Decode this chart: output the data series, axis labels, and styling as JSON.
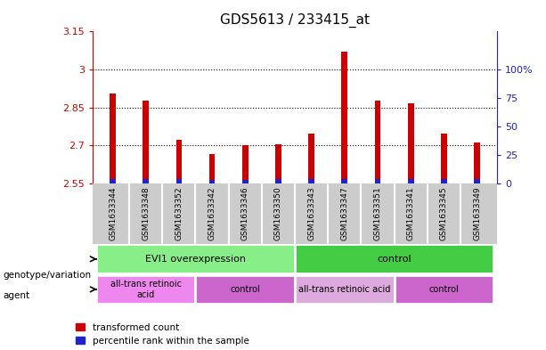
{
  "title": "GDS5613 / 233415_at",
  "samples": [
    "GSM1633344",
    "GSM1633348",
    "GSM1633352",
    "GSM1633342",
    "GSM1633346",
    "GSM1633350",
    "GSM1633343",
    "GSM1633347",
    "GSM1633351",
    "GSM1633341",
    "GSM1633345",
    "GSM1633349"
  ],
  "bar_bottom": 2.55,
  "transformed_count": [
    2.905,
    2.875,
    2.72,
    2.665,
    2.7,
    2.705,
    2.745,
    3.07,
    2.875,
    2.865,
    2.745,
    2.71
  ],
  "percentile_rank_height": [
    0.018,
    0.018,
    0.016,
    0.014,
    0.014,
    0.015,
    0.016,
    0.018,
    0.017,
    0.017,
    0.016,
    0.016
  ],
  "ylim_left": [
    2.55,
    3.15
  ],
  "yticks_left": [
    2.55,
    2.7,
    2.85,
    3.0,
    3.15
  ],
  "ytick_labels_left": [
    "2.55",
    "2.7",
    "2.85",
    "3",
    "3.15"
  ],
  "yticks_right": [
    0,
    25,
    50,
    75,
    100
  ],
  "ytick_labels_right": [
    "0",
    "25",
    "50",
    "75",
    "100%"
  ],
  "ylim_right": [
    0,
    133.0
  ],
  "bar_width": 0.18,
  "red_color": "#cc0000",
  "blue_color": "#2222cc",
  "plot_bg_color": "#ffffff",
  "xtick_bg_color": "#cccccc",
  "genotype_groups": [
    {
      "label": "EVI1 overexpression",
      "start": 0,
      "end": 6,
      "color": "#88ee88"
    },
    {
      "label": "control",
      "start": 6,
      "end": 12,
      "color": "#44cc44"
    }
  ],
  "agent_groups": [
    {
      "label": "all-trans retinoic\nacid",
      "start": 0,
      "end": 3,
      "color": "#ee88ee"
    },
    {
      "label": "control",
      "start": 3,
      "end": 6,
      "color": "#cc66cc"
    },
    {
      "label": "all-trans retinoic acid",
      "start": 6,
      "end": 9,
      "color": "#ddaadd"
    },
    {
      "label": "control",
      "start": 9,
      "end": 12,
      "color": "#cc66cc"
    }
  ],
  "legend_red": "transformed count",
  "legend_blue": "percentile rank within the sample",
  "genotype_label": "genotype/variation",
  "agent_label": "agent"
}
